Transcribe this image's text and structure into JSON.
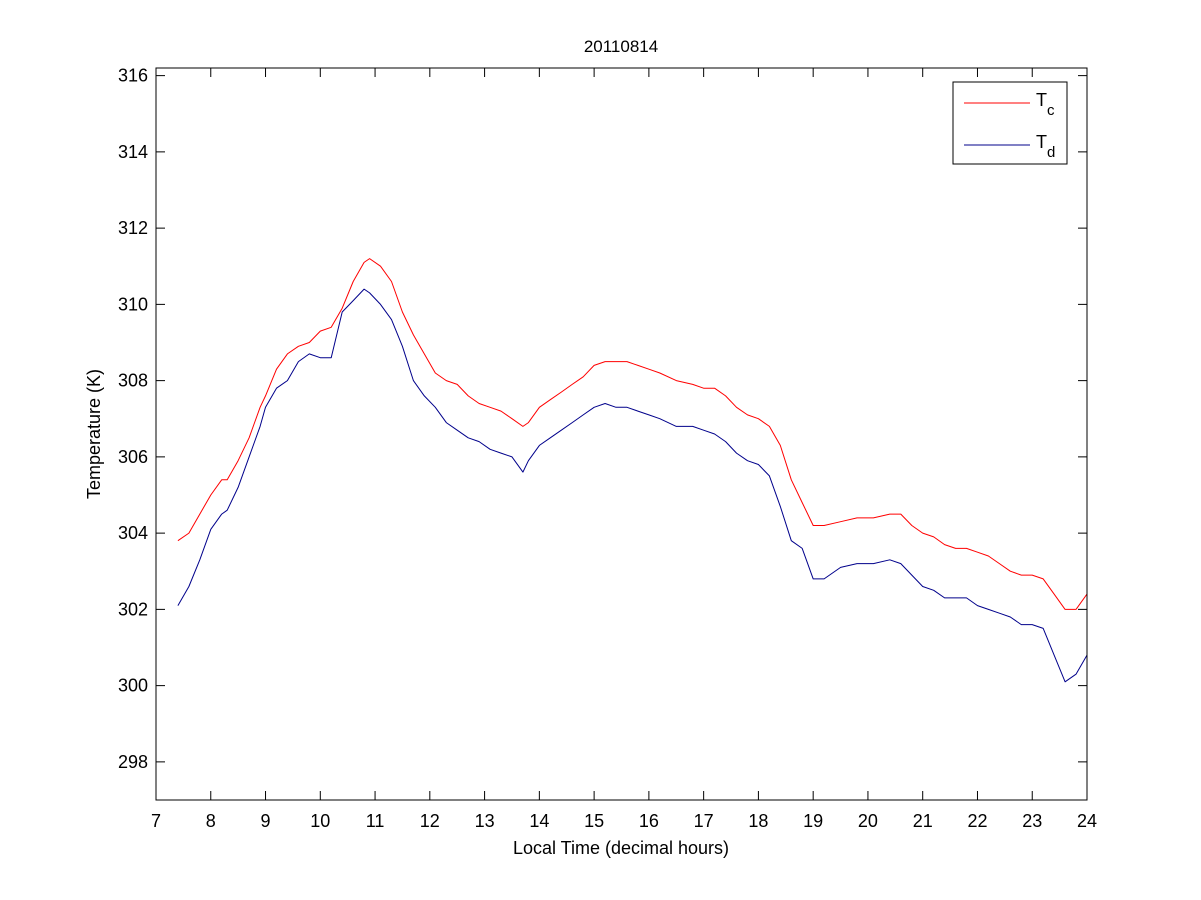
{
  "chart_data": {
    "type": "line",
    "title": "20110814",
    "xlabel": "Local Time (decimal hours)",
    "ylabel": "Temperature (K)",
    "xlim": [
      7,
      24
    ],
    "ylim": [
      297,
      316.2
    ],
    "xticks": [
      7,
      8,
      9,
      10,
      11,
      12,
      13,
      14,
      15,
      16,
      17,
      18,
      19,
      20,
      21,
      22,
      23,
      24
    ],
    "yticks": [
      298,
      300,
      302,
      304,
      306,
      308,
      310,
      312,
      314,
      316
    ],
    "grid": false,
    "legend_position": "top-right",
    "series": [
      {
        "name": "T",
        "subscript": "c",
        "color": "#ff0000",
        "x": [
          7.4,
          7.6,
          7.8,
          8.0,
          8.2,
          8.3,
          8.5,
          8.7,
          8.9,
          9.0,
          9.2,
          9.4,
          9.6,
          9.8,
          10.0,
          10.2,
          10.4,
          10.6,
          10.8,
          10.9,
          11.1,
          11.3,
          11.5,
          11.7,
          11.9,
          12.1,
          12.3,
          12.5,
          12.7,
          12.9,
          13.1,
          13.3,
          13.5,
          13.7,
          13.8,
          14.0,
          14.2,
          14.4,
          14.6,
          14.8,
          15.0,
          15.2,
          15.4,
          15.6,
          15.8,
          16.0,
          16.2,
          16.5,
          16.8,
          17.0,
          17.2,
          17.4,
          17.6,
          17.8,
          18.0,
          18.2,
          18.4,
          18.6,
          18.8,
          19.0,
          19.2,
          19.5,
          19.8,
          20.1,
          20.4,
          20.6,
          20.8,
          21.0,
          21.2,
          21.4,
          21.6,
          21.8,
          22.0,
          22.2,
          22.4,
          22.6,
          22.8,
          23.0,
          23.2,
          23.4,
          23.6,
          23.8,
          24.0
        ],
        "values": [
          303.8,
          304.0,
          304.5,
          305.0,
          305.4,
          305.4,
          305.9,
          306.5,
          307.3,
          307.6,
          308.3,
          308.7,
          308.9,
          309.0,
          309.3,
          309.4,
          309.9,
          310.6,
          311.1,
          311.2,
          311.0,
          310.6,
          309.8,
          309.2,
          308.7,
          308.2,
          308.0,
          307.9,
          307.6,
          307.4,
          307.3,
          307.2,
          307.0,
          306.8,
          306.9,
          307.3,
          307.5,
          307.7,
          307.9,
          308.1,
          308.4,
          308.5,
          308.5,
          308.5,
          308.4,
          308.3,
          308.2,
          308.0,
          307.9,
          307.8,
          307.8,
          307.6,
          307.3,
          307.1,
          307.0,
          306.8,
          306.3,
          305.4,
          304.8,
          304.2,
          304.2,
          304.3,
          304.4,
          304.4,
          304.5,
          304.5,
          304.2,
          304.0,
          303.9,
          303.7,
          303.6,
          303.6,
          303.5,
          303.4,
          303.2,
          303.0,
          302.9,
          302.9,
          302.8,
          302.4,
          302.0,
          302.0,
          302.4
        ]
      },
      {
        "name": "T",
        "subscript": "d",
        "color": "#00008b",
        "x": [
          7.4,
          7.6,
          7.8,
          8.0,
          8.2,
          8.3,
          8.5,
          8.7,
          8.9,
          9.0,
          9.2,
          9.4,
          9.6,
          9.8,
          10.0,
          10.2,
          10.4,
          10.6,
          10.8,
          10.9,
          11.1,
          11.3,
          11.5,
          11.7,
          11.9,
          12.1,
          12.3,
          12.5,
          12.7,
          12.9,
          13.1,
          13.3,
          13.5,
          13.7,
          13.8,
          14.0,
          14.2,
          14.4,
          14.6,
          14.8,
          15.0,
          15.2,
          15.4,
          15.6,
          15.8,
          16.0,
          16.2,
          16.5,
          16.8,
          17.0,
          17.2,
          17.4,
          17.6,
          17.8,
          18.0,
          18.2,
          18.4,
          18.6,
          18.8,
          19.0,
          19.2,
          19.5,
          19.8,
          20.1,
          20.4,
          20.6,
          20.8,
          21.0,
          21.2,
          21.4,
          21.6,
          21.8,
          22.0,
          22.2,
          22.4,
          22.6,
          22.8,
          23.0,
          23.2,
          23.4,
          23.6,
          23.8,
          24.0
        ],
        "values": [
          302.1,
          302.6,
          303.3,
          304.1,
          304.5,
          304.6,
          305.2,
          306.0,
          306.8,
          307.3,
          307.8,
          308.0,
          308.5,
          308.7,
          308.6,
          308.6,
          309.8,
          310.1,
          310.4,
          310.3,
          310.0,
          309.6,
          308.9,
          308.0,
          307.6,
          307.3,
          306.9,
          306.7,
          306.5,
          306.4,
          306.2,
          306.1,
          306.0,
          305.6,
          305.9,
          306.3,
          306.5,
          306.7,
          306.9,
          307.1,
          307.3,
          307.4,
          307.3,
          307.3,
          307.2,
          307.1,
          307.0,
          306.8,
          306.8,
          306.7,
          306.6,
          306.4,
          306.1,
          305.9,
          305.8,
          305.5,
          304.7,
          303.8,
          303.6,
          302.8,
          302.8,
          303.1,
          303.2,
          303.2,
          303.3,
          303.2,
          302.9,
          302.6,
          302.5,
          302.3,
          302.3,
          302.3,
          302.1,
          302.0,
          301.9,
          301.8,
          301.6,
          301.6,
          301.5,
          300.8,
          300.1,
          300.3,
          300.8
        ]
      }
    ]
  }
}
